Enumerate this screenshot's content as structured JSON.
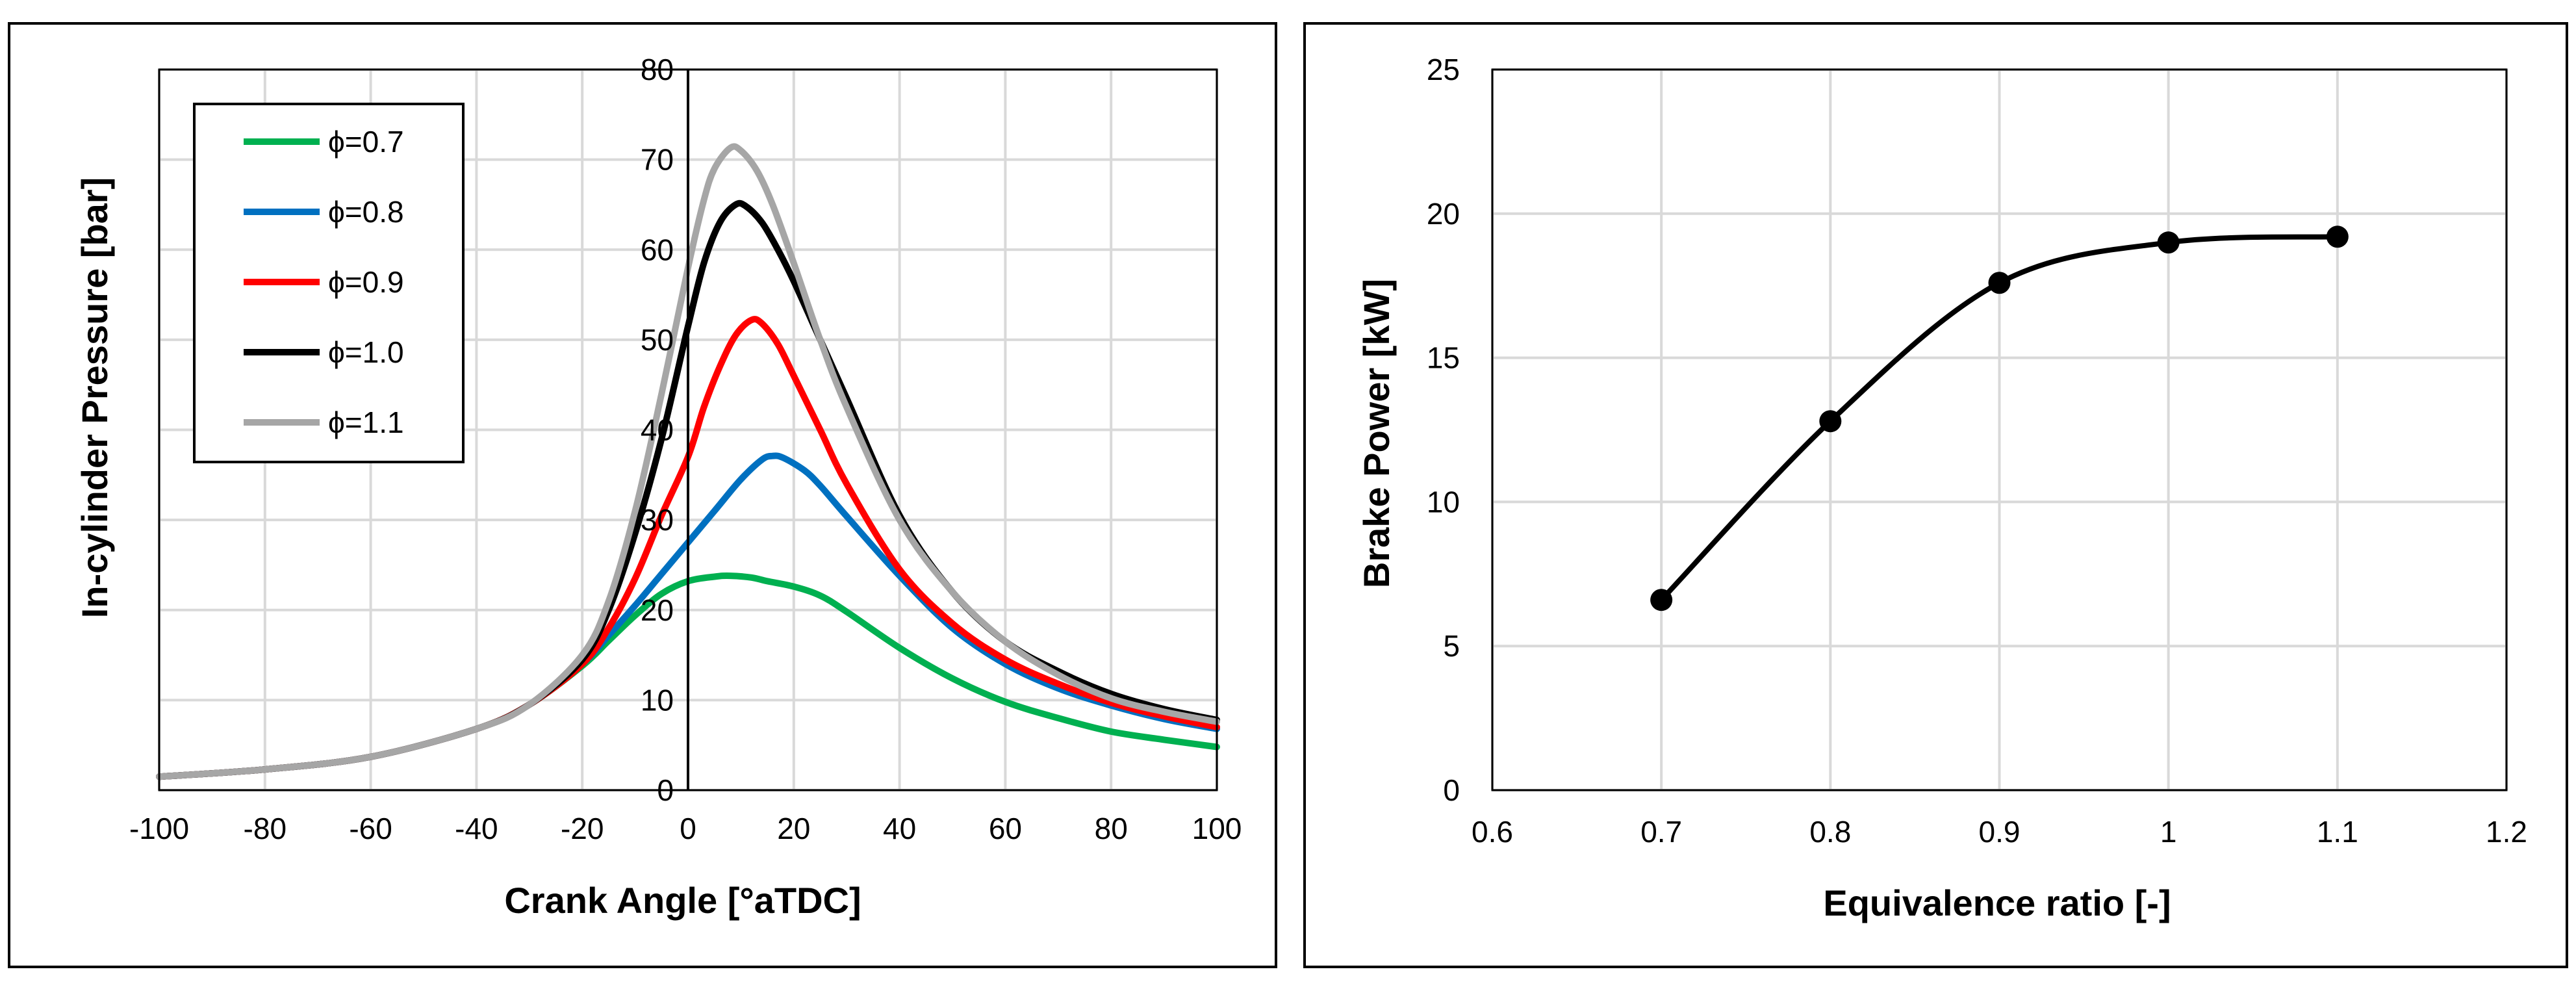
{
  "chart_data": [
    {
      "type": "line",
      "xlabel": "Crank Angle [°aTDC]",
      "ylabel": "In-cylinder Pressure [bar]",
      "xlim": [
        -100,
        100
      ],
      "ylim": [
        0,
        80
      ],
      "xticks": [
        -100,
        -80,
        -60,
        -40,
        -20,
        0,
        20,
        40,
        60,
        80,
        100
      ],
      "yticks": [
        0,
        10,
        20,
        30,
        40,
        50,
        60,
        70,
        80
      ],
      "legend_position": "top-left",
      "series": [
        {
          "name": "ϕ=0.7",
          "color": "#00b050",
          "x": [
            -100,
            -80,
            -60,
            -40,
            -30,
            -20,
            -15,
            -10,
            -5,
            0,
            5,
            8,
            12,
            15,
            20,
            25,
            30,
            40,
            50,
            60,
            70,
            80,
            90,
            100
          ],
          "y": [
            1.5,
            2.3,
            3.7,
            6.8,
            9.5,
            13.8,
            16.6,
            19.4,
            21.8,
            23.2,
            23.7,
            23.8,
            23.6,
            23.2,
            22.6,
            21.6,
            19.8,
            15.8,
            12.4,
            9.8,
            8.0,
            6.5,
            5.6,
            4.8
          ]
        },
        {
          "name": "ϕ=0.8",
          "color": "#0070c0",
          "x": [
            -100,
            -80,
            -60,
            -40,
            -30,
            -20,
            -15,
            -10,
            -5,
            0,
            5,
            10,
            14,
            16,
            18,
            22,
            25,
            30,
            40,
            50,
            60,
            70,
            80,
            90,
            100
          ],
          "y": [
            1.5,
            2.3,
            3.7,
            6.8,
            9.5,
            14.0,
            17.2,
            20.5,
            24.0,
            27.5,
            31.0,
            34.5,
            36.7,
            37.1,
            36.9,
            35.5,
            33.8,
            30.4,
            23.8,
            18.0,
            14.0,
            11.3,
            9.4,
            7.9,
            6.8
          ]
        },
        {
          "name": "ϕ=0.9",
          "color": "#ff0000",
          "x": [
            -100,
            -80,
            -60,
            -40,
            -30,
            -20,
            -15,
            -10,
            -5,
            0,
            3,
            6,
            9,
            12,
            14,
            17,
            20,
            25,
            30,
            40,
            50,
            60,
            70,
            80,
            90,
            100
          ],
          "y": [
            1.5,
            2.3,
            3.7,
            6.8,
            9.5,
            14.0,
            18.0,
            23.5,
            30.5,
            37.0,
            42.5,
            47.0,
            50.5,
            52.2,
            51.8,
            49.5,
            46.0,
            40.0,
            34.0,
            24.5,
            18.5,
            14.5,
            11.8,
            9.7,
            8.2,
            7.0
          ]
        },
        {
          "name": "ϕ=1.0",
          "color": "#000000",
          "x": [
            -100,
            -80,
            -60,
            -40,
            -30,
            -20,
            -15,
            -10,
            -5,
            0,
            3,
            6,
            9,
            11,
            14,
            17,
            20,
            25,
            30,
            40,
            50,
            60,
            70,
            80,
            90,
            100
          ],
          "y": [
            1.5,
            2.3,
            3.7,
            6.8,
            9.5,
            14.5,
            20.0,
            28.5,
            39.0,
            51.5,
            58.5,
            63.0,
            65.0,
            64.8,
            63.0,
            60.0,
            56.5,
            50.0,
            43.5,
            30.5,
            22.0,
            16.5,
            13.2,
            10.7,
            9.0,
            7.8
          ]
        },
        {
          "name": "ϕ=1.1",
          "color": "#a6a6a6",
          "x": [
            -100,
            -80,
            -60,
            -40,
            -30,
            -20,
            -15,
            -10,
            -5,
            0,
            3,
            5,
            8,
            10,
            13,
            16,
            20,
            25,
            30,
            40,
            50,
            60,
            70,
            80,
            90,
            100
          ],
          "y": [
            1.5,
            2.3,
            3.7,
            6.8,
            9.5,
            15.0,
            21.0,
            31.0,
            44.0,
            58.0,
            65.5,
            69.0,
            71.3,
            71.0,
            68.8,
            65.0,
            58.5,
            50.0,
            42.5,
            30.0,
            22.0,
            16.5,
            12.8,
            10.2,
            8.7,
            7.6
          ]
        }
      ]
    },
    {
      "type": "line",
      "xlabel": "Equivalence ratio [-]",
      "ylabel": "Brake Power [kW]",
      "xlim": [
        0.6,
        1.2
      ],
      "ylim": [
        0,
        25
      ],
      "xticks": [
        "0.6",
        "0.7",
        "0.8",
        "0.9",
        "1",
        "1.1",
        "1.2"
      ],
      "yticks": [
        0,
        5,
        10,
        15,
        20,
        25
      ],
      "markers": true,
      "series": [
        {
          "name": "Brake Power",
          "color": "#000000",
          "x": [
            0.7,
            0.8,
            0.9,
            1.0,
            1.1
          ],
          "y": [
            6.6,
            12.8,
            17.6,
            19.0,
            19.2
          ]
        }
      ]
    }
  ]
}
